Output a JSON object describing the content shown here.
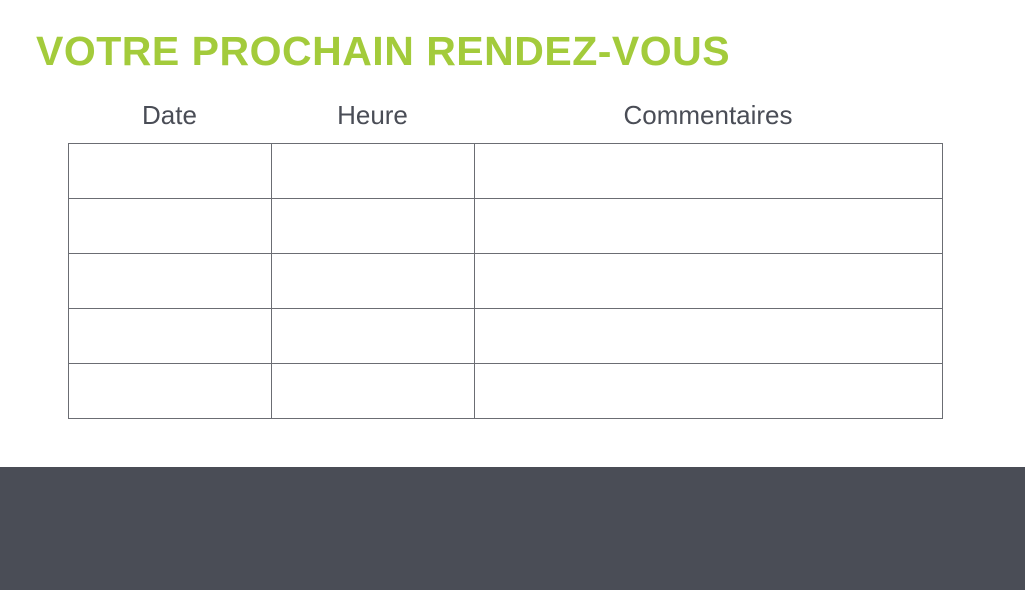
{
  "title": "VOTRE PROCHAIN RENDEZ-VOUS",
  "columns": [
    "Date",
    "Heure",
    "Commentaires"
  ],
  "rows": [
    [
      "",
      "",
      ""
    ],
    [
      "",
      "",
      ""
    ],
    [
      "",
      "",
      ""
    ],
    [
      "",
      "",
      ""
    ],
    [
      "",
      "",
      ""
    ]
  ],
  "colors": {
    "title": "#a3cb3b",
    "text": "#4a4d56",
    "footer": "#4a4d56"
  }
}
